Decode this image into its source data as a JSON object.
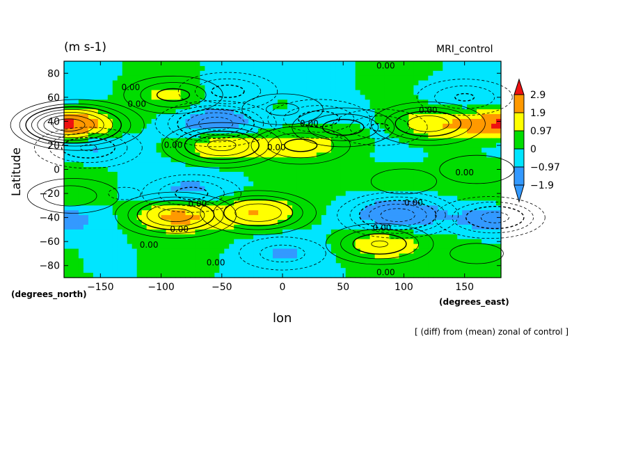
{
  "header": {
    "units": "(m s-1)",
    "model": "MRI_control"
  },
  "axes": {
    "ylabel": "Latitude",
    "xlabel": "lon",
    "y_units": "(degrees_north)",
    "x_units": "(degrees_east)"
  },
  "footer": {
    "note": "[ (diff) from (mean) zonal of control ]"
  },
  "colors": {
    "strong_neg": "#3399ff",
    "neg": "#00e5ff",
    "pos": "#00dd00",
    "mid_pos": "#ffff00",
    "high_pos": "#ff9900",
    "max_pos": "#ee1111"
  },
  "chart_data": {
    "type": "heatmap",
    "subtype": "contour",
    "xlim": [
      -180,
      180
    ],
    "ylim": [
      -90,
      90
    ],
    "x_ticks": [
      -150,
      -100,
      -50,
      0,
      50,
      100,
      150
    ],
    "y_ticks": [
      -80,
      -60,
      -40,
      -20,
      0,
      20,
      40,
      60,
      80
    ],
    "contour_label": "0.00",
    "colorbar": {
      "levels": [
        "2.9",
        "1.9",
        "0.97",
        "0",
        "-0.97",
        "-1.9"
      ],
      "colors": [
        "#ee1111",
        "#ff9900",
        "#ffff00",
        "#00dd00",
        "#00e5ff",
        "#3399ff"
      ]
    },
    "anomalies": [
      {
        "lon": -176,
        "lat": 37,
        "value": 3.3
      },
      {
        "lon": -55,
        "lat": 38,
        "value": -2.2
      },
      {
        "lon": -45,
        "lat": 65,
        "value": -1.2
      },
      {
        "lon": -90,
        "lat": 62,
        "value": 1.2
      },
      {
        "lon": -50,
        "lat": 20,
        "value": 2.1
      },
      {
        "lon": -88,
        "lat": -38,
        "value": 2.2
      },
      {
        "lon": -20,
        "lat": -36,
        "value": 1.9
      },
      {
        "lon": 50,
        "lat": 35,
        "value": 1.3
      },
      {
        "lon": 120,
        "lat": 38,
        "value": 1.8
      },
      {
        "lon": 15,
        "lat": 20,
        "value": 1.2
      },
      {
        "lon": 95,
        "lat": -38,
        "value": -2.2
      },
      {
        "lon": -160,
        "lat": 18,
        "value": -1.5
      },
      {
        "lon": -75,
        "lat": -20,
        "value": -1.2
      },
      {
        "lon": 80,
        "lat": -62,
        "value": 1.5
      },
      {
        "lon": 150,
        "lat": 60,
        "value": -1.1
      },
      {
        "lon": -175,
        "lat": -22,
        "value": 1.0
      },
      {
        "lon": 30,
        "lat": 42,
        "value": -1.3
      },
      {
        "lon": 80,
        "lat": 35,
        "value": -1.1
      },
      {
        "lon": 0,
        "lat": 50,
        "value": 0.8
      },
      {
        "lon": 175,
        "lat": -40,
        "value": -1.6
      },
      {
        "lon": 160,
        "lat": -70,
        "value": 0.5
      },
      {
        "lon": 0,
        "lat": -70,
        "value": -0.9
      },
      {
        "lon": 160,
        "lat": 0,
        "value": 0.7
      },
      {
        "lon": -130,
        "lat": -20,
        "value": -0.4
      },
      {
        "lon": 100,
        "lat": -10,
        "value": 0.6
      }
    ]
  }
}
